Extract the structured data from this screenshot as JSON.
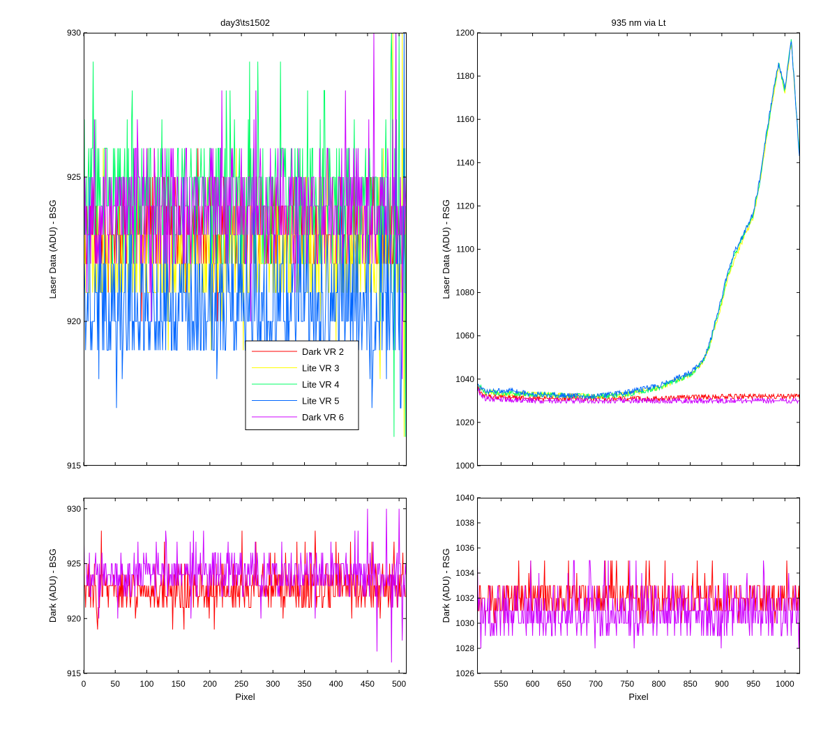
{
  "colors": {
    "Dark VR 2": "#ff0000",
    "Lite VR 3": "#ffff00",
    "Lite VR 4": "#00ff66",
    "Lite VR 5": "#0066ff",
    "Dark VR 6": "#cc00ff"
  },
  "chart_data": [
    {
      "id": "bsg_laser",
      "type": "line",
      "title": "day3\\ts1502",
      "xlabel": "",
      "ylabel": "Laser Data (ADU) - BSG",
      "xlim": [
        0,
        512
      ],
      "ylim": [
        915,
        930
      ],
      "xticks": [
        0,
        50,
        100,
        150,
        200,
        250,
        300,
        350,
        400,
        450,
        500
      ],
      "yticks": [
        915,
        920,
        925,
        930
      ],
      "show_x_tick_labels": false,
      "grid": false,
      "legend": {
        "placement": "lower-right-center",
        "entries": [
          "Dark VR 2",
          "Lite VR 3",
          "Lite VR 4",
          "Lite VR 5",
          "Dark VR 6"
        ]
      },
      "series": [
        {
          "name": "Dark VR 2",
          "kind": "discrete_noise",
          "seed": 11,
          "x_start": 0,
          "x_end": 511,
          "step": 1,
          "levels": [
            922,
            923,
            924,
            925
          ],
          "weights": [
            0.3,
            0.35,
            0.25,
            0.1
          ],
          "spike_values": [
            920,
            921,
            926,
            928
          ],
          "spike_prob": 0.03,
          "start_value": 929
        },
        {
          "name": "Lite VR 3",
          "kind": "discrete_noise",
          "seed": 23,
          "x_start": 0,
          "x_end": 511,
          "step": 1,
          "levels": [
            921,
            922,
            923,
            924
          ],
          "weights": [
            0.3,
            0.35,
            0.25,
            0.1
          ],
          "spike_values": [
            919,
            920,
            925,
            926
          ],
          "spike_prob": 0.03,
          "tail_spikes": [
            [
              470,
              918
            ],
            [
              490,
              930
            ],
            [
              505,
              930
            ],
            [
              508,
              916
            ]
          ]
        },
        {
          "name": "Lite VR 4",
          "kind": "discrete_noise",
          "seed": 37,
          "x_start": 0,
          "x_end": 511,
          "step": 1,
          "levels": [
            922,
            923,
            924,
            925,
            926
          ],
          "weights": [
            0.12,
            0.22,
            0.28,
            0.24,
            0.14
          ],
          "spike_values": [
            927,
            928,
            929
          ],
          "spike_prob": 0.05,
          "tail_spikes": [
            [
              488,
              930
            ],
            [
              492,
              916
            ],
            [
              500,
              930
            ],
            [
              510,
              916
            ]
          ]
        },
        {
          "name": "Lite VR 5",
          "kind": "discrete_noise",
          "seed": 41,
          "x_start": 0,
          "x_end": 511,
          "step": 1,
          "levels": [
            919,
            920,
            921,
            922,
            923
          ],
          "weights": [
            0.22,
            0.3,
            0.24,
            0.15,
            0.09
          ],
          "spike_values": [
            917,
            918,
            924,
            925
          ],
          "spike_prob": 0.05,
          "tail_spikes": [
            [
              495,
              930
            ],
            [
              502,
              917
            ],
            [
              508,
              930
            ]
          ]
        },
        {
          "name": "Dark VR 6",
          "kind": "discrete_noise",
          "seed": 53,
          "x_start": 0,
          "x_end": 511,
          "step": 1,
          "levels": [
            922,
            923,
            924,
            925,
            926
          ],
          "weights": [
            0.1,
            0.25,
            0.3,
            0.25,
            0.1
          ],
          "spike_values": [
            920,
            921,
            927,
            928
          ],
          "spike_prob": 0.04,
          "tail_spikes": [
            [
              460,
              930
            ],
            [
              495,
              930
            ],
            [
              505,
              918
            ]
          ],
          "start_value": 929
        }
      ]
    },
    {
      "id": "rsg_laser",
      "type": "line",
      "title": "935 nm via Lt",
      "xlabel": "",
      "ylabel": "Laser Data (ADU) - RSG",
      "xlim": [
        512,
        1024
      ],
      "ylim": [
        1000,
        1200
      ],
      "xticks": [
        550,
        600,
        650,
        700,
        750,
        800,
        850,
        900,
        950,
        1000
      ],
      "yticks": [
        1000,
        1020,
        1040,
        1060,
        1080,
        1100,
        1120,
        1140,
        1160,
        1180,
        1200
      ],
      "show_x_tick_labels": false,
      "grid": false,
      "series": [
        {
          "name": "Dark VR 2",
          "kind": "noise_around_curve",
          "seed": 61,
          "x_start": 512,
          "x_end": 1023,
          "step": 1,
          "noise": 1.2,
          "curve": [
            [
              512,
              1036
            ],
            [
              525,
              1032
            ],
            [
              600,
              1031
            ],
            [
              700,
              1031
            ],
            [
              800,
              1031
            ],
            [
              900,
              1032
            ],
            [
              1023,
              1032
            ]
          ]
        },
        {
          "name": "Lite VR 3",
          "kind": "noise_around_curve",
          "seed": 67,
          "x_start": 512,
          "x_end": 1023,
          "step": 1,
          "noise": 1.0,
          "curve": [
            [
              512,
              1038
            ],
            [
              525,
              1034
            ],
            [
              600,
              1033
            ],
            [
              700,
              1032
            ],
            [
              750,
              1033
            ],
            [
              800,
              1036
            ],
            [
              850,
              1042
            ],
            [
              870,
              1048
            ],
            [
              880,
              1055
            ],
            [
              890,
              1065
            ],
            [
              900,
              1075
            ],
            [
              910,
              1088
            ],
            [
              920,
              1095
            ],
            [
              930,
              1102
            ],
            [
              950,
              1115
            ],
            [
              960,
              1130
            ],
            [
              970,
              1150
            ],
            [
              980,
              1168
            ],
            [
              990,
              1185
            ],
            [
              1000,
              1172
            ],
            [
              1010,
              1196
            ],
            [
              1023,
              1144
            ]
          ]
        },
        {
          "name": "Lite VR 4",
          "kind": "noise_around_curve",
          "seed": 71,
          "x_start": 512,
          "x_end": 1023,
          "step": 1,
          "noise": 1.0,
          "curve": [
            [
              512,
              1038
            ],
            [
              525,
              1034
            ],
            [
              600,
              1033
            ],
            [
              700,
              1032
            ],
            [
              750,
              1033
            ],
            [
              800,
              1036
            ],
            [
              850,
              1042
            ],
            [
              870,
              1048
            ],
            [
              880,
              1055
            ],
            [
              890,
              1066
            ],
            [
              900,
              1076
            ],
            [
              910,
              1089
            ],
            [
              920,
              1097
            ],
            [
              930,
              1104
            ],
            [
              950,
              1116
            ],
            [
              960,
              1131
            ],
            [
              970,
              1151
            ],
            [
              980,
              1169
            ],
            [
              990,
              1186
            ],
            [
              1000,
              1173
            ],
            [
              1010,
              1197
            ],
            [
              1023,
              1145
            ]
          ]
        },
        {
          "name": "Lite VR 5",
          "kind": "noise_around_curve",
          "seed": 73,
          "x_start": 512,
          "x_end": 1023,
          "step": 1,
          "noise": 1.1,
          "curve": [
            [
              512,
              1037
            ],
            [
              525,
              1034
            ],
            [
              560,
              1035
            ],
            [
              600,
              1033
            ],
            [
              700,
              1032
            ],
            [
              750,
              1034
            ],
            [
              800,
              1037
            ],
            [
              850,
              1043
            ],
            [
              870,
              1048
            ],
            [
              880,
              1056
            ],
            [
              890,
              1067
            ],
            [
              900,
              1078
            ],
            [
              910,
              1090
            ],
            [
              920,
              1099
            ],
            [
              930,
              1104
            ],
            [
              950,
              1117
            ],
            [
              960,
              1132
            ],
            [
              970,
              1152
            ],
            [
              980,
              1170
            ],
            [
              990,
              1186
            ],
            [
              1000,
              1174
            ],
            [
              1010,
              1197
            ],
            [
              1023,
              1143
            ]
          ]
        },
        {
          "name": "Dark VR 6",
          "kind": "noise_around_curve",
          "seed": 79,
          "x_start": 512,
          "x_end": 1023,
          "step": 1,
          "noise": 1.1,
          "curve": [
            [
              512,
              1035
            ],
            [
              525,
              1031
            ],
            [
              600,
              1030
            ],
            [
              700,
              1030
            ],
            [
              800,
              1030
            ],
            [
              900,
              1030
            ],
            [
              1023,
              1030
            ]
          ]
        }
      ]
    },
    {
      "id": "bsg_dark",
      "type": "line",
      "title": "",
      "xlabel": "Pixel",
      "ylabel": "Dark (ADU) - BSG",
      "xlim": [
        0,
        512
      ],
      "ylim": [
        915,
        931
      ],
      "xticks": [
        0,
        50,
        100,
        150,
        200,
        250,
        300,
        350,
        400,
        450,
        500
      ],
      "yticks": [
        915,
        920,
        925,
        930
      ],
      "show_x_tick_labels": true,
      "grid": false,
      "series": [
        {
          "name": "Dark VR 2",
          "kind": "discrete_noise",
          "seed": 83,
          "x_start": 0,
          "x_end": 511,
          "step": 1,
          "levels": [
            921,
            922,
            923,
            924,
            925
          ],
          "weights": [
            0.15,
            0.3,
            0.3,
            0.17,
            0.08
          ],
          "spike_values": [
            919,
            920,
            926,
            927,
            928
          ],
          "spike_prob": 0.05,
          "start_value": 929
        },
        {
          "name": "Dark VR 6",
          "kind": "discrete_noise",
          "seed": 89,
          "x_start": 0,
          "x_end": 511,
          "step": 1,
          "levels": [
            922,
            923,
            924,
            925,
            926
          ],
          "weights": [
            0.1,
            0.25,
            0.3,
            0.25,
            0.1
          ],
          "spike_values": [
            920,
            927,
            928
          ],
          "spike_prob": 0.05,
          "tail_spikes": [
            [
              430,
              928
            ],
            [
              450,
              930
            ],
            [
              465,
              917
            ],
            [
              480,
              930
            ],
            [
              488,
              916
            ],
            [
              500,
              930
            ],
            [
              505,
              918
            ]
          ],
          "start_value": 929
        }
      ]
    },
    {
      "id": "rsg_dark",
      "type": "line",
      "title": "",
      "xlabel": "Pixel",
      "ylabel": "Dark (ADU) - RSG",
      "xlim": [
        512,
        1024
      ],
      "ylim": [
        1026,
        1040
      ],
      "xticks": [
        550,
        600,
        650,
        700,
        750,
        800,
        850,
        900,
        950,
        1000
      ],
      "yticks": [
        1026,
        1028,
        1030,
        1032,
        1034,
        1036,
        1038,
        1040
      ],
      "show_x_tick_labels": true,
      "grid": false,
      "series": [
        {
          "name": "Dark VR 2",
          "kind": "discrete_noise",
          "seed": 97,
          "x_start": 512,
          "x_end": 1023,
          "step": 1,
          "levels": [
            1031,
            1032,
            1033
          ],
          "weights": [
            0.3,
            0.4,
            0.3
          ],
          "spike_values": [
            1030,
            1034,
            1035
          ],
          "spike_prob": 0.06,
          "start_value": 1039
        },
        {
          "name": "Dark VR 6",
          "kind": "discrete_noise",
          "seed": 101,
          "x_start": 512,
          "x_end": 1023,
          "step": 1,
          "levels": [
            1029,
            1030,
            1031,
            1032,
            1033
          ],
          "weights": [
            0.15,
            0.3,
            0.3,
            0.15,
            0.1
          ],
          "spike_values": [
            1028,
            1034,
            1035
          ],
          "spike_prob": 0.05,
          "start_value": 1037
        }
      ]
    }
  ]
}
